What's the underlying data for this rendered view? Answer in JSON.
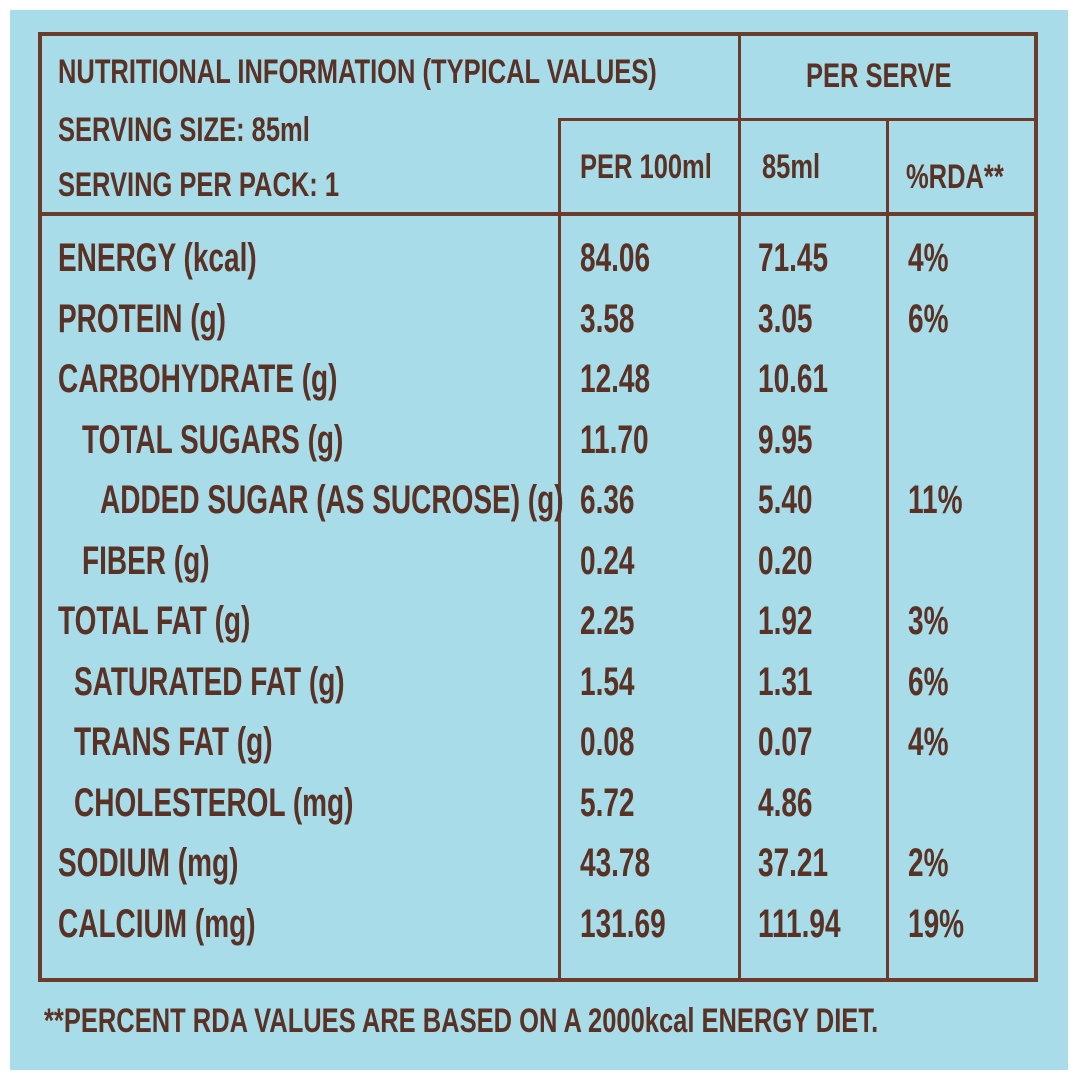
{
  "header": {
    "title": "NUTRITIONAL INFORMATION (TYPICAL VALUES)",
    "serving_size": "SERVING SIZE: 85ml",
    "servings_per_pack": "SERVING PER PACK: 1",
    "per_serve": "PER SERVE",
    "col_per_100": "PER 100ml",
    "col_per_serve": "85ml",
    "col_rda": "%RDA**"
  },
  "rows": [
    {
      "name": "ENERGY (kcal)",
      "per100": "84.06",
      "perServe": "71.45",
      "rda": "4%"
    },
    {
      "name": "PROTEIN (g)",
      "per100": "3.58",
      "perServe": "3.05",
      "rda": "6%"
    },
    {
      "name": "CARBOHYDRATE (g)",
      "per100": "12.48",
      "perServe": "10.61",
      "rda": ""
    },
    {
      "name": "TOTAL SUGARS (g)",
      "per100": "11.70",
      "perServe": "9.95",
      "rda": ""
    },
    {
      "name": "ADDED SUGAR (AS SUCROSE) (g)",
      "per100": "6.36",
      "perServe": "5.40",
      "rda": "11%"
    },
    {
      "name": "FIBER (g)",
      "per100": "0.24",
      "perServe": "0.20",
      "rda": ""
    },
    {
      "name": "TOTAL FAT (g)",
      "per100": "2.25",
      "perServe": "1.92",
      "rda": "3%"
    },
    {
      "name": "SATURATED FAT (g)",
      "per100": "1.54",
      "perServe": "1.31",
      "rda": "6%"
    },
    {
      "name": "TRANS FAT (g)",
      "per100": "0.08",
      "perServe": "0.07",
      "rda": "4%"
    },
    {
      "name": "CHOLESTEROL (mg)",
      "per100": "5.72",
      "perServe": "4.86",
      "rda": ""
    },
    {
      "name": "SODIUM (mg)",
      "per100": "43.78",
      "perServe": "37.21",
      "rda": "2%"
    },
    {
      "name": "CALCIUM (mg)",
      "per100": "131.69",
      "perServe": "111.94",
      "rda": "19%"
    }
  ],
  "footnote": "**PERCENT RDA VALUES ARE BASED ON A 2000kcal ENERGY DIET.",
  "colors": {
    "background": "#a8dce8",
    "ink": "#5a3125",
    "rule": "#6b3b2c"
  }
}
